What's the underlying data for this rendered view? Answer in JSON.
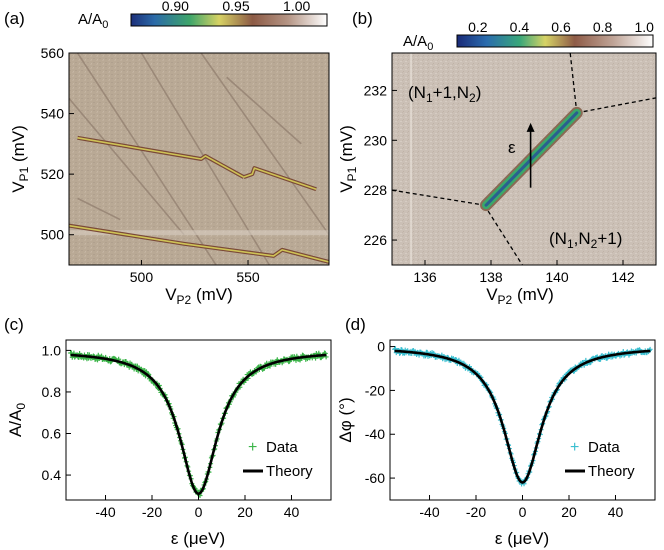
{
  "panels": {
    "a": {
      "panel_label": "(a)",
      "xlabel": "V_P2 (mV)",
      "ylabel": "V_P1 (mV)",
      "colorbar": {
        "label": "A/A_0",
        "ticks": [
          "0.90",
          "0.95",
          "1.00"
        ]
      }
    },
    "b": {
      "panel_label": "(b)",
      "xlabel": "V_P2 (mV)",
      "ylabel": "V_P1 (mV)",
      "colorbar": {
        "label": "A/A_0",
        "ticks": [
          "0.2",
          "0.4",
          "0.6",
          "0.8",
          "1.0"
        ]
      },
      "annotations": {
        "upper": "(N_1+1,N_2)",
        "lower": "(N_1,N_2+1)",
        "arrow": "ε"
      }
    },
    "c": {
      "panel_label": "(c)",
      "xlabel": "ε (μeV)",
      "ylabel": "A/A_0"
    },
    "d": {
      "panel_label": "(d)",
      "xlabel": "ε (μeV)",
      "ylabel": "Δφ (°)"
    }
  },
  "chart_data": [
    {
      "panel": "a",
      "type": "heatmap",
      "xlim": [
        466,
        588
      ],
      "ylim": [
        490,
        560
      ],
      "xticks": [
        500,
        550
      ],
      "yticks": [
        500,
        520,
        540,
        560
      ],
      "colormap": "green-yellow-brown-white",
      "color_range": [
        0.87,
        1.02
      ],
      "features": [
        {
          "kind": "interdot-line",
          "x": [
            470,
            528,
            530,
            548
          ],
          "y": [
            532,
            525,
            526,
            519
          ]
        },
        {
          "kind": "interdot-line",
          "x": [
            548,
            552,
            553,
            582
          ],
          "y": [
            519,
            520,
            522,
            515
          ]
        },
        {
          "kind": "interdot-line",
          "x": [
            466,
            520,
            562,
            566,
            588
          ],
          "y": [
            503,
            497,
            493,
            495,
            491
          ]
        }
      ]
    },
    {
      "panel": "b",
      "type": "heatmap",
      "xlim": [
        135,
        143
      ],
      "ylim": [
        225,
        233.5
      ],
      "xticks": [
        136,
        138,
        140,
        142
      ],
      "yticks": [
        226,
        228,
        230,
        232
      ],
      "colormap": "blue-green-yellow-brown-white",
      "color_range": [
        0.1,
        1.05
      ],
      "features": [
        {
          "kind": "transition-line",
          "x": [
            137.85,
            140.6
          ],
          "y": [
            227.4,
            231.1
          ]
        }
      ],
      "boundaries": [
        {
          "x": [
            135,
            137.8
          ],
          "y": [
            228,
            227.4
          ]
        },
        {
          "x": [
            137.8,
            138.95
          ],
          "y": [
            227.4,
            225
          ]
        },
        {
          "x": [
            140.6,
            143
          ],
          "y": [
            231.1,
            231.7
          ]
        },
        {
          "x": [
            140.6,
            140.4
          ],
          "y": [
            231.1,
            233.5
          ]
        }
      ],
      "arrow": {
        "x": 139.2,
        "y": [
          228.1,
          230.7
        ]
      }
    },
    {
      "panel": "c",
      "type": "scatter",
      "xlim": [
        -57,
        57
      ],
      "ylim": [
        0.28,
        1.05
      ],
      "xticks": [
        -40,
        -20,
        0,
        20,
        40
      ],
      "yticks": [
        0.4,
        0.6,
        0.8,
        1.0
      ],
      "series": [
        {
          "name": "Data",
          "color": "#3cb54a",
          "marker": "+",
          "x_range": [
            -55,
            55
          ],
          "baseline": 1.0,
          "minimum": 0.31,
          "width": 10
        },
        {
          "name": "Theory",
          "color": "#000000",
          "line": true,
          "x_range": [
            -55,
            55
          ],
          "baseline": 1.0,
          "minimum": 0.31,
          "width": 10
        }
      ]
    },
    {
      "panel": "d",
      "type": "scatter",
      "xlim": [
        -57,
        57
      ],
      "ylim": [
        -70,
        3
      ],
      "xticks": [
        -40,
        -20,
        0,
        20,
        40
      ],
      "yticks": [
        -60,
        -40,
        -20,
        0
      ],
      "series": [
        {
          "name": "Data",
          "color": "#3bbfd0",
          "marker": "+",
          "x_range": [
            -55,
            55
          ],
          "baseline": 0,
          "minimum": -62,
          "width": 10
        },
        {
          "name": "Theory",
          "color": "#000000",
          "line": true,
          "x_range": [
            -55,
            55
          ],
          "baseline": 0,
          "minimum": -62,
          "width": 10
        }
      ]
    }
  ],
  "colors": {
    "background_a": "#b8a896",
    "background_b": "#c9beb3",
    "trace_brown": "#7b4a38",
    "trace_yellow": "#d8d05a",
    "trace_blue": "#2a5f8f",
    "trace_green": "#3aa86a"
  }
}
